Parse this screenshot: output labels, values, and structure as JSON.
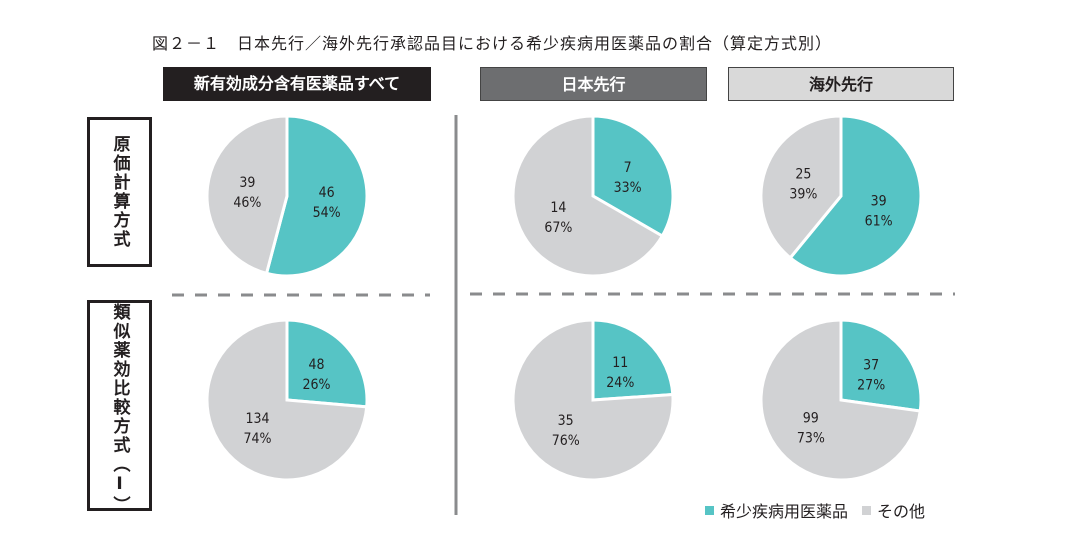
{
  "chart_data": {
    "type": "pie",
    "title": "図２－１　日本先行／海外先行承認品目における希少疾病用医薬品の割合（算定方式別）",
    "columns": [
      "新有効成分含有医薬品すべて",
      "日本先行",
      "海外先行"
    ],
    "rows": [
      "原価計算方式",
      "類似薬効比較方式（Ⅰ）"
    ],
    "legend": [
      "希少疾病用医薬品",
      "その他"
    ],
    "legend_placement": "bottom-right",
    "colors": {
      "orphan": "#56c4c5",
      "other": "#d1d2d4"
    },
    "pies": [
      {
        "row": 0,
        "col": 0,
        "orphan": {
          "count": "46",
          "pct": "54%"
        },
        "other": {
          "count": "39",
          "pct": "46%"
        }
      },
      {
        "row": 0,
        "col": 1,
        "orphan": {
          "count": "7",
          "pct": "33%"
        },
        "other": {
          "count": "14",
          "pct": "67%"
        }
      },
      {
        "row": 0,
        "col": 2,
        "orphan": {
          "count": "39",
          "pct": "61%"
        },
        "other": {
          "count": "25",
          "pct": "39%"
        }
      },
      {
        "row": 1,
        "col": 0,
        "orphan": {
          "count": "48",
          "pct": "26%"
        },
        "other": {
          "count": "134",
          "pct": "74%"
        }
      },
      {
        "row": 1,
        "col": 1,
        "orphan": {
          "count": "11",
          "pct": "24%"
        },
        "other": {
          "count": "35",
          "pct": "76%"
        }
      },
      {
        "row": 1,
        "col": 2,
        "orphan": {
          "count": "37",
          "pct": "27%"
        },
        "other": {
          "count": "99",
          "pct": "73%"
        }
      }
    ]
  }
}
